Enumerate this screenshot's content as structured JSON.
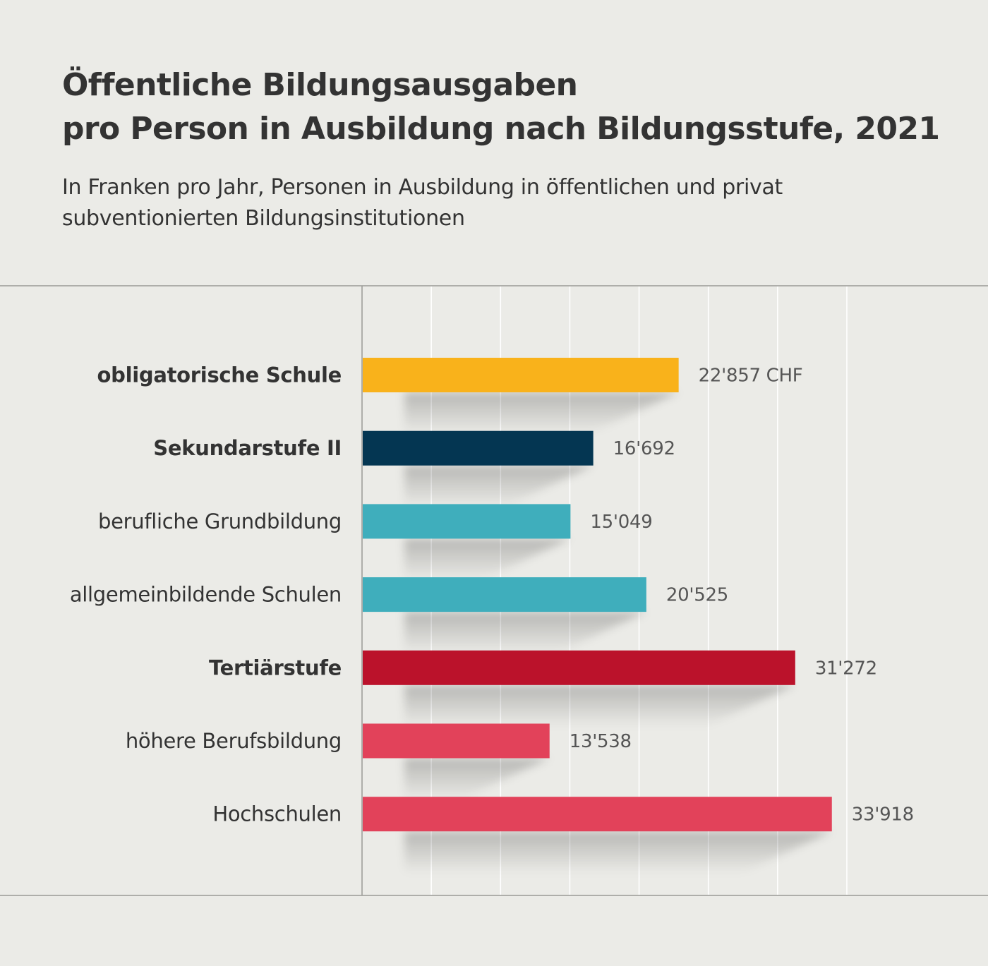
{
  "chart_data": {
    "type": "bar",
    "orientation": "horizontal",
    "title": [
      "Öffentliche Bildungsausgaben",
      "pro Person in Ausbildung nach Bildungsstufe, 2021"
    ],
    "subtitle": [
      "In Franken pro Jahr, Personen in Ausbildung in öffentlichen und privat",
      "subventionierten Bildungsinstitutionen"
    ],
    "categories": [
      "obligatorische Schule",
      "Sekundarstufe II",
      "berufliche Grundbildung",
      "allgemeinbildende Schulen",
      "Tertiärstufe",
      "höhere Berufsbildung",
      "Hochschulen"
    ],
    "values": [
      22857,
      16692,
      15049,
      20525,
      31272,
      13538,
      33918
    ],
    "value_labels": [
      "22'857 CHF",
      "16'692",
      "15'049",
      "20'525",
      "31'272",
      "13'538",
      "33'918"
    ],
    "bold_categories": [
      true,
      true,
      false,
      false,
      true,
      false,
      false
    ],
    "colors": [
      "#f9b21b",
      "#043652",
      "#3faebc",
      "#3faebc",
      "#bb122b",
      "#e2425a",
      "#e2425a"
    ],
    "xlim": [
      0,
      35000
    ],
    "grid": true,
    "xlabel": "",
    "ylabel": ""
  }
}
